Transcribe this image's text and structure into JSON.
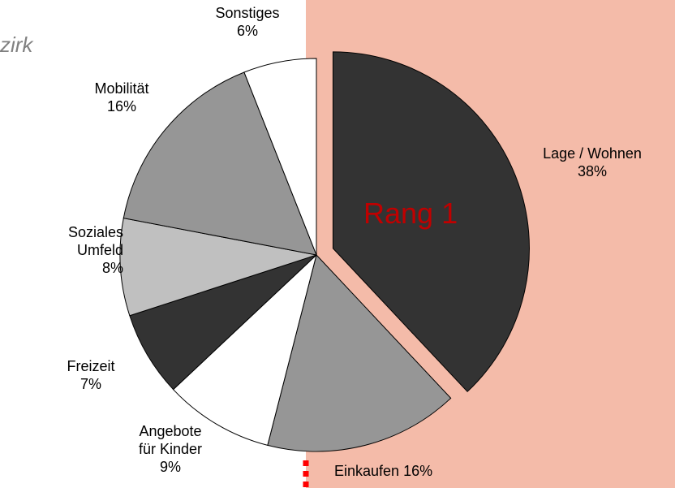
{
  "title": "zirk",
  "annotation": "Rang 1",
  "chart_data": {
    "type": "pie",
    "categories": [
      "Lage / Wohnen",
      "Einkaufen",
      "Angebote für Kinder",
      "Freizeit",
      "Soziales Umfeld",
      "Mobilität",
      "Sonstiges"
    ],
    "values": [
      38,
      16,
      9,
      7,
      8,
      16,
      6
    ],
    "value_labels": [
      "38%",
      "16%",
      "9%",
      "7%",
      "8%",
      "16%",
      "6%"
    ],
    "colors": [
      "#333333",
      "#969696",
      "#ffffff",
      "#333333",
      "#c0c0c0",
      "#969696",
      "#ffffff"
    ]
  }
}
